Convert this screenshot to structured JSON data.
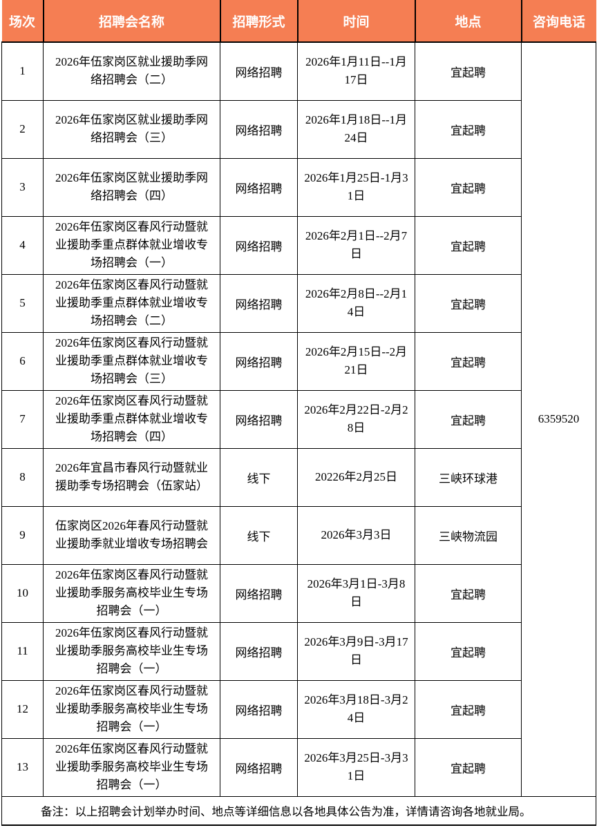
{
  "header": {
    "columns": [
      "场次",
      "招聘会名称",
      "招聘形式",
      "时间",
      "地点",
      "咨询电话"
    ]
  },
  "rows": [
    {
      "no": "1",
      "name": "2026年伍家岗区就业援助季网络招聘会（二）",
      "form": "网络招聘",
      "time": "2026年1月11日--1月17日",
      "location": "宜起聘"
    },
    {
      "no": "2",
      "name": "2026年伍家岗区就业援助季网络招聘会（三）",
      "form": "网络招聘",
      "time": "2026年1月18日--1月24日",
      "location": "宜起聘"
    },
    {
      "no": "3",
      "name": "2026年伍家岗区就业援助季网络招聘会（四）",
      "form": "网络招聘",
      "time": "2026年1月25日-1月31日",
      "location": "宜起聘"
    },
    {
      "no": "4",
      "name": "2026年伍家岗区春风行动暨就业援助季重点群体就业增收专场招聘会（一）",
      "form": "网络招聘",
      "time": "2026年2月1日--2月7日",
      "location": "宜起聘"
    },
    {
      "no": "5",
      "name": "2026年伍家岗区春风行动暨就业援助季重点群体就业增收专场招聘会（二）",
      "form": "网络招聘",
      "time": "2026年2月8日--2月14日",
      "location": "宜起聘"
    },
    {
      "no": "6",
      "name": "2026年伍家岗区春风行动暨就业援助季重点群体就业增收专场招聘会（三）",
      "form": "网络招聘",
      "time": "2026年2月15日--2月21日",
      "location": "宜起聘"
    },
    {
      "no": "7",
      "name": "2026年伍家岗区春风行动暨就业援助季重点群体就业增收专场招聘会（四）",
      "form": "网络招聘",
      "time": "2026年2月22日-2月28日",
      "location": "宜起聘"
    },
    {
      "no": "8",
      "name": "2026年宜昌市春风行动暨就业援助季专场招聘会（伍家站）",
      "form": "线下",
      "time": "20226年2月25日",
      "location": "三峡环球港"
    },
    {
      "no": "9",
      "name": "伍家岗区2026年春风行动暨就业援助季就业增收专场招聘会",
      "form": "线下",
      "time": "2026年3月3日",
      "location": "三峡物流园"
    },
    {
      "no": "10",
      "name": "2026年伍家岗区春风行动暨就业援助季服务高校毕业生专场招聘会（一）",
      "form": "网络招聘",
      "time": "2026年3月1日-3月8日",
      "location": "宜起聘"
    },
    {
      "no": "11",
      "name": "2026年伍家岗区春风行动暨就业援助季服务高校毕业生专场招聘会（一）",
      "form": "网络招聘",
      "time": "2026年3月9日-3月17日",
      "location": "宜起聘"
    },
    {
      "no": "12",
      "name": "2026年伍家岗区春风行动暨就业援助季服务高校毕业生专场招聘会（一）",
      "form": "网络招聘",
      "time": "2026年3月18日-3月24日",
      "location": "宜起聘"
    },
    {
      "no": "13",
      "name": "2026年伍家岗区春风行动暨就业援助季服务高校毕业生专场招聘会（一）",
      "form": "网络招聘",
      "time": "2026年3月25日-3月31日",
      "location": "宜起聘"
    }
  ],
  "phone": "6359520",
  "note": "备注：以上招聘会计划举办时间、地点等详细信息以各地具体公告为准，详情请咨询各地就业局。",
  "colors": {
    "header_bg": "#F57E53",
    "header_text": "#FFFFFF",
    "border": "#000000",
    "body_text": "#000000"
  }
}
